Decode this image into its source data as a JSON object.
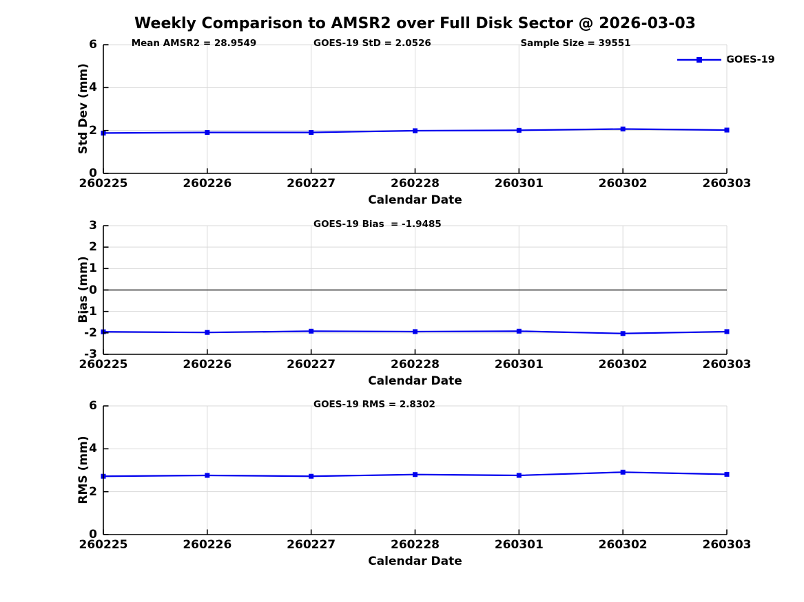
{
  "title": "Weekly Comparison to AMSR2 over Full Disk Sector @ 2026-03-03",
  "colors": {
    "line": "#0000EE",
    "grid": "#d9d9d9",
    "zero_line": "#4d4d4d",
    "axis": "#000000",
    "text": "#000000",
    "background": "#ffffff"
  },
  "chart_data": {
    "type": "line",
    "x": [
      "260225",
      "260226",
      "260227",
      "260228",
      "260301",
      "260302",
      "260303"
    ],
    "xlabel": "Calendar Date",
    "grid": true,
    "legend": {
      "label": "GOES-19",
      "position": "top-right",
      "marker": "square",
      "line_color": "#0000EE"
    },
    "panels": [
      {
        "id": "std-dev",
        "ylabel": "Std Dev (mm)",
        "ylim": [
          0,
          6
        ],
        "yticks": [
          0,
          2,
          4,
          6
        ],
        "zero_line": false,
        "series": [
          {
            "name": "GOES-19",
            "values": [
              1.88,
              1.91,
              1.91,
              1.99,
              2.01,
              2.07,
              2.02
            ]
          }
        ],
        "annotations": [
          {
            "text": "Mean AMSR2 = 28.9549",
            "xfrac": 0.045
          },
          {
            "text": "GOES-19 StD = 2.0526",
            "xfrac": 0.337
          },
          {
            "text": "Sample Size = 39551",
            "xfrac": 0.669
          }
        ]
      },
      {
        "id": "bias",
        "ylabel": "Bias (mm)",
        "ylim": [
          -3,
          3
        ],
        "yticks": [
          -3,
          -2,
          -1,
          0,
          1,
          2,
          3
        ],
        "zero_line": true,
        "series": [
          {
            "name": "GOES-19",
            "values": [
              -1.95,
              -1.98,
              -1.92,
              -1.94,
              -1.92,
              -2.03,
              -1.94
            ]
          }
        ],
        "annotations": [
          {
            "text": "GOES-19 Bias  = -1.9485",
            "xfrac": 0.337
          }
        ]
      },
      {
        "id": "rms",
        "ylabel": "RMS (mm)",
        "ylim": [
          0,
          6
        ],
        "yticks": [
          0,
          2,
          4,
          6
        ],
        "zero_line": false,
        "series": [
          {
            "name": "GOES-19",
            "values": [
              2.72,
              2.76,
              2.72,
              2.8,
              2.76,
              2.91,
              2.81
            ]
          }
        ],
        "annotations": [
          {
            "text": "GOES-19 RMS = 2.8302",
            "xfrac": 0.337
          }
        ]
      }
    ]
  }
}
